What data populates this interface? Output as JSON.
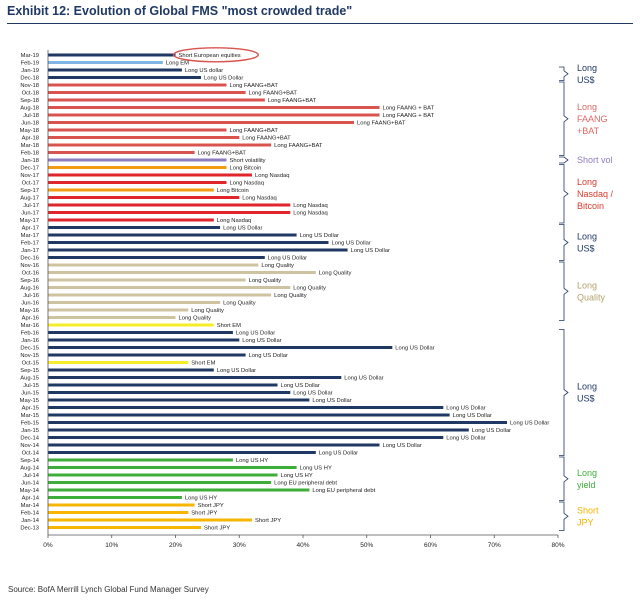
{
  "exhibit": {
    "title": "Exhibit 12: Evolution of Global FMS \"most crowded trade\"",
    "source": "Source: BofA Merrill Lynch Global Fund Manager Survey"
  },
  "chart_data": {
    "type": "bar",
    "orientation": "horizontal",
    "xlim": [
      0,
      80
    ],
    "x_unit": "%",
    "x_ticks": [
      "0%",
      "10%",
      "20%",
      "30%",
      "40%",
      "50%",
      "60%",
      "70%",
      "80%"
    ],
    "grid": false,
    "bars": [
      {
        "month": "Mar-19",
        "value": 20,
        "label": "Short European equities",
        "group": "short-eu",
        "circled": true
      },
      {
        "month": "Feb-19",
        "value": 18,
        "label": "Long EM",
        "group": "long-em"
      },
      {
        "month": "Jan-19",
        "value": 21,
        "label": "Long US dollar",
        "group": "long-usd"
      },
      {
        "month": "Dec-18",
        "value": 24,
        "label": "Long US Dollar",
        "group": "long-usd"
      },
      {
        "month": "Nov-18",
        "value": 28,
        "label": "Long FAANG+BAT",
        "group": "faang"
      },
      {
        "month": "Oct-18",
        "value": 31,
        "label": "Long FAANG+BAT",
        "group": "faang"
      },
      {
        "month": "Sep-18",
        "value": 34,
        "label": "Long FAANG+BAT",
        "group": "faang"
      },
      {
        "month": "Aug-18",
        "value": 52,
        "label": "Long FAANG + BAT",
        "group": "faang"
      },
      {
        "month": "Jul-18",
        "value": 52,
        "label": "Long FAANG + BAT",
        "group": "faang"
      },
      {
        "month": "Jun-18",
        "value": 48,
        "label": "Long FAANG+BAT",
        "group": "faang"
      },
      {
        "month": "May-18",
        "value": 28,
        "label": "Long FAANG+BAT",
        "group": "faang"
      },
      {
        "month": "Apr-18",
        "value": 30,
        "label": "Long FAANG+BAT",
        "group": "faang"
      },
      {
        "month": "Mar-18",
        "value": 35,
        "label": "Long FAANG+BAT",
        "group": "faang"
      },
      {
        "month": "Feb-18",
        "value": 23,
        "label": "Long FAANG+BAT",
        "group": "faang"
      },
      {
        "month": "Jan-18",
        "value": 28,
        "label": "Short volatility",
        "group": "short-vol"
      },
      {
        "month": "Dec-17",
        "value": 28,
        "label": "Long Bitcoin",
        "group": "bitcoin"
      },
      {
        "month": "Nov-17",
        "value": 32,
        "label": "Long Nasdaq",
        "group": "nasdaq"
      },
      {
        "month": "Oct-17",
        "value": 28,
        "label": "Long Nasdaq",
        "group": "nasdaq"
      },
      {
        "month": "Sep-17",
        "value": 26,
        "label": "Long Bitcoin",
        "group": "bitcoin"
      },
      {
        "month": "Aug-17",
        "value": 30,
        "label": "Long Nasdaq",
        "group": "nasdaq"
      },
      {
        "month": "Jul-17",
        "value": 38,
        "label": "Long Nasdaq",
        "group": "nasdaq"
      },
      {
        "month": "Jun-17",
        "value": 38,
        "label": "Long Nasdaq",
        "group": "nasdaq"
      },
      {
        "month": "May-17",
        "value": 26,
        "label": "Long Nasdaq",
        "group": "nasdaq"
      },
      {
        "month": "Apr-17",
        "value": 27,
        "label": "Long US Dollar",
        "group": "long-usd"
      },
      {
        "month": "Mar-17",
        "value": 39,
        "label": "Long US Dollar",
        "group": "long-usd"
      },
      {
        "month": "Feb-17",
        "value": 44,
        "label": "Long US Dollar",
        "group": "long-usd"
      },
      {
        "month": "Jan-17",
        "value": 47,
        "label": "Long US Dollar",
        "group": "long-usd"
      },
      {
        "month": "Dec-16",
        "value": 34,
        "label": "Long US Dollar",
        "group": "long-usd"
      },
      {
        "month": "Nov-16",
        "value": 33,
        "label": "Long Quality",
        "group": "quality"
      },
      {
        "month": "Oct-16",
        "value": 42,
        "label": "Long Quality",
        "group": "quality"
      },
      {
        "month": "Sep-16",
        "value": 31,
        "label": "Long Quality",
        "group": "quality"
      },
      {
        "month": "Aug-16",
        "value": 38,
        "label": "Long Quality",
        "group": "quality"
      },
      {
        "month": "Jul-16",
        "value": 35,
        "label": "Long Quality",
        "group": "quality"
      },
      {
        "month": "Jun-16",
        "value": 27,
        "label": "Long Quality",
        "group": "quality"
      },
      {
        "month": "May-16",
        "value": 22,
        "label": "Long Quality",
        "group": "quality"
      },
      {
        "month": "Apr-16",
        "value": 20,
        "label": "Long Quality",
        "group": "quality"
      },
      {
        "month": "Mar-16",
        "value": 26,
        "label": "Short EM",
        "group": "short-em"
      },
      {
        "month": "Feb-16",
        "value": 29,
        "label": "Long US Dollar",
        "group": "long-usd"
      },
      {
        "month": "Jan-16",
        "value": 30,
        "label": "Long US Dollar",
        "group": "long-usd"
      },
      {
        "month": "Dec-15",
        "value": 54,
        "label": "Long US Dollar",
        "group": "long-usd"
      },
      {
        "month": "Nov-15",
        "value": 31,
        "label": "Long US Dollar",
        "group": "long-usd"
      },
      {
        "month": "Oct-15",
        "value": 22,
        "label": "Short EM",
        "group": "short-em"
      },
      {
        "month": "Sep-15",
        "value": 26,
        "label": "Long US Dollar",
        "group": "long-usd"
      },
      {
        "month": "Aug-15",
        "value": 46,
        "label": "Long US Dollar",
        "group": "long-usd"
      },
      {
        "month": "Jul-15",
        "value": 36,
        "label": "Long US Dollar",
        "group": "long-usd"
      },
      {
        "month": "Jun-15",
        "value": 38,
        "label": "Long US Dollar",
        "group": "long-usd"
      },
      {
        "month": "May-15",
        "value": 41,
        "label": "Long US Dollar",
        "group": "long-usd"
      },
      {
        "month": "Apr-15",
        "value": 62,
        "label": "Long US Dollar",
        "group": "long-usd"
      },
      {
        "month": "Mar-15",
        "value": 63,
        "label": "Long US Dollar",
        "group": "long-usd"
      },
      {
        "month": "Feb-15",
        "value": 72,
        "label": "Long US Dollar",
        "group": "long-usd"
      },
      {
        "month": "Jan-15",
        "value": 66,
        "label": "Long US Dollar",
        "group": "long-usd"
      },
      {
        "month": "Dec-14",
        "value": 62,
        "label": "Long US Dollar",
        "group": "long-usd"
      },
      {
        "month": "Nov-14",
        "value": 52,
        "label": "Long US Dollar",
        "group": "long-usd"
      },
      {
        "month": "Oct-14",
        "value": 42,
        "label": "Long US Dollar",
        "group": "long-usd"
      },
      {
        "month": "Sep-14",
        "value": 29,
        "label": "Long US HY",
        "group": "yield"
      },
      {
        "month": "Aug-14",
        "value": 39,
        "label": "Long US HY",
        "group": "yield"
      },
      {
        "month": "Jul-14",
        "value": 36,
        "label": "Long US HY",
        "group": "yield"
      },
      {
        "month": "Jun-14",
        "value": 35,
        "label": "Long EU peripheral debt",
        "group": "yield"
      },
      {
        "month": "May-14",
        "value": 41,
        "label": "Long EU peripheral debt",
        "group": "yield"
      },
      {
        "month": "Apr-14",
        "value": 21,
        "label": "Long US HY",
        "group": "yield"
      },
      {
        "month": "Mar-14",
        "value": 23,
        "label": "Short JPY",
        "group": "short-jpy"
      },
      {
        "month": "Feb-14",
        "value": 22,
        "label": "Short JPY",
        "group": "short-jpy"
      },
      {
        "month": "Jan-14",
        "value": 32,
        "label": "Short JPY",
        "group": "short-jpy"
      },
      {
        "month": "Dec-13",
        "value": 24,
        "label": "Short JPY",
        "group": "short-jpy"
      }
    ],
    "group_colors": {
      "short-eu": "#1f3864",
      "long-em": "#7fb6e6",
      "long-usd": "#1f3864",
      "faang": "#d9534f",
      "short-vol": "#8e7cc3",
      "bitcoin": "#f39c12",
      "nasdaq": "#e0252b",
      "quality": "#cdc3a0",
      "short-em": "#f5ed2a",
      "yield": "#3eae3a",
      "short-jpy": "#f6b600",
      "circle": "#d9534f"
    },
    "annotations": [
      {
        "lines": [
          "Long",
          "US$"
        ],
        "first": "Jan-19",
        "last": "Dec-18",
        "color": "#1f3864"
      },
      {
        "lines": [
          "Long",
          "FAANG",
          "+BAT"
        ],
        "first": "Nov-18",
        "last": "Feb-18",
        "color": "#e06666"
      },
      {
        "lines": [
          "Short vol"
        ],
        "first": "Jan-18",
        "last": "Jan-18",
        "color": "#8e7cc3"
      },
      {
        "lines": [
          "Long",
          "Nasdaq /",
          "Bitcoin"
        ],
        "first": "Dec-17",
        "last": "May-17",
        "color": "#d93a2b"
      },
      {
        "lines": [
          "Long",
          "US$"
        ],
        "first": "Apr-17",
        "last": "Dec-16",
        "color": "#1f3864"
      },
      {
        "lines": [
          "Long",
          "Quality"
        ],
        "first": "Nov-16",
        "last": "Apr-16",
        "color": "#b5a26c"
      },
      {
        "lines": [
          "Long",
          "US$"
        ],
        "first": "Feb-16",
        "last": "Oct-14",
        "color": "#1f3864"
      },
      {
        "lines": [
          "Long",
          "yield"
        ],
        "first": "Sep-14",
        "last": "Apr-14",
        "color": "#3eae3a"
      },
      {
        "lines": [
          "Short",
          "JPY"
        ],
        "first": "Mar-14",
        "last": "Dec-13",
        "color": "#f0b400"
      }
    ]
  }
}
